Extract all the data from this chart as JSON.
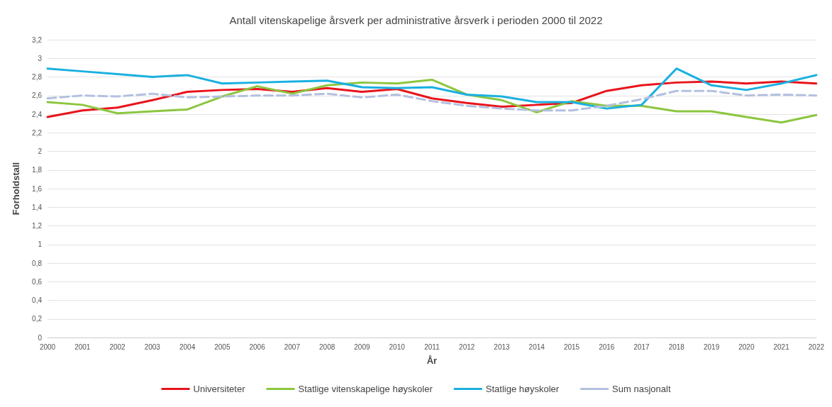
{
  "chart_data": {
    "type": "line",
    "title": "Antall vitenskapelige årsverk per administrative årsverk i perioden 2000 til 2022",
    "xlabel": "År",
    "ylabel": "Forholdstall",
    "categories": [
      "2000",
      "2001",
      "2002",
      "2003",
      "2004",
      "2005",
      "2006",
      "2007",
      "2008",
      "2009",
      "2010",
      "2011",
      "2012",
      "2013",
      "2014",
      "2015",
      "2016",
      "2017",
      "2018",
      "2019",
      "2020",
      "2021",
      "2022"
    ],
    "series": [
      {
        "name": "Universiteter",
        "color": "#e8141b",
        "values": [
          2.37,
          2.44,
          2.47,
          2.55,
          2.64,
          2.66,
          2.67,
          2.64,
          2.68,
          2.64,
          2.67,
          2.57,
          2.52,
          2.48,
          2.5,
          2.52,
          2.65,
          2.71,
          2.74,
          2.75,
          2.73,
          2.75,
          2.73
        ]
      },
      {
        "name": "Statlige vitenskapelige høyskoler",
        "color": "#8cc63f",
        "values": [
          2.53,
          2.5,
          2.41,
          2.43,
          2.45,
          2.59,
          2.7,
          2.62,
          2.71,
          2.74,
          2.73,
          2.77,
          2.61,
          2.55,
          2.42,
          2.54,
          2.49,
          2.49,
          2.43,
          2.43,
          2.37,
          2.31,
          2.39
        ]
      },
      {
        "name": "Statlige høyskoler",
        "color": "#1ab0e0",
        "values": [
          2.89,
          2.86,
          2.83,
          2.8,
          2.82,
          2.73,
          2.74,
          2.75,
          2.76,
          2.69,
          2.68,
          2.69,
          2.61,
          2.59,
          2.53,
          2.53,
          2.46,
          2.5,
          2.89,
          2.71,
          2.66,
          2.73,
          2.82
        ]
      },
      {
        "name": "Sum nasjonalt",
        "color": "#b4c0e0",
        "line_style": "dashed",
        "values": [
          2.57,
          2.6,
          2.59,
          2.62,
          2.58,
          2.59,
          2.6,
          2.6,
          2.62,
          2.58,
          2.61,
          2.54,
          2.49,
          2.46,
          2.44,
          2.44,
          2.49,
          2.56,
          2.65,
          2.65,
          2.6,
          2.61,
          2.6
        ]
      }
    ],
    "ylim": [
      0,
      3.2
    ],
    "yticks": [
      0,
      {
        "value": 0.2,
        "label": "0,2"
      },
      {
        "value": 0.4,
        "label": "0,4"
      },
      {
        "value": 0.6,
        "label": "0,6"
      },
      {
        "value": 0.8,
        "label": "0,8"
      },
      1,
      {
        "value": 1.2,
        "label": "1,2"
      },
      {
        "value": 1.4,
        "label": "1,4"
      },
      {
        "value": 1.6,
        "label": "1,6"
      },
      {
        "value": 1.8,
        "label": "1,8"
      },
      2,
      {
        "value": 2.2,
        "label": "2,2"
      },
      {
        "value": 2.4,
        "label": "2,4"
      },
      {
        "value": 2.6,
        "label": "2,6"
      },
      {
        "value": 2.8,
        "label": "2,8"
      },
      3,
      {
        "value": 3.2,
        "label": "3,2"
      }
    ],
    "grid": "y",
    "legend": "bottom",
    "marker": "none",
    "line_style": "solid"
  }
}
